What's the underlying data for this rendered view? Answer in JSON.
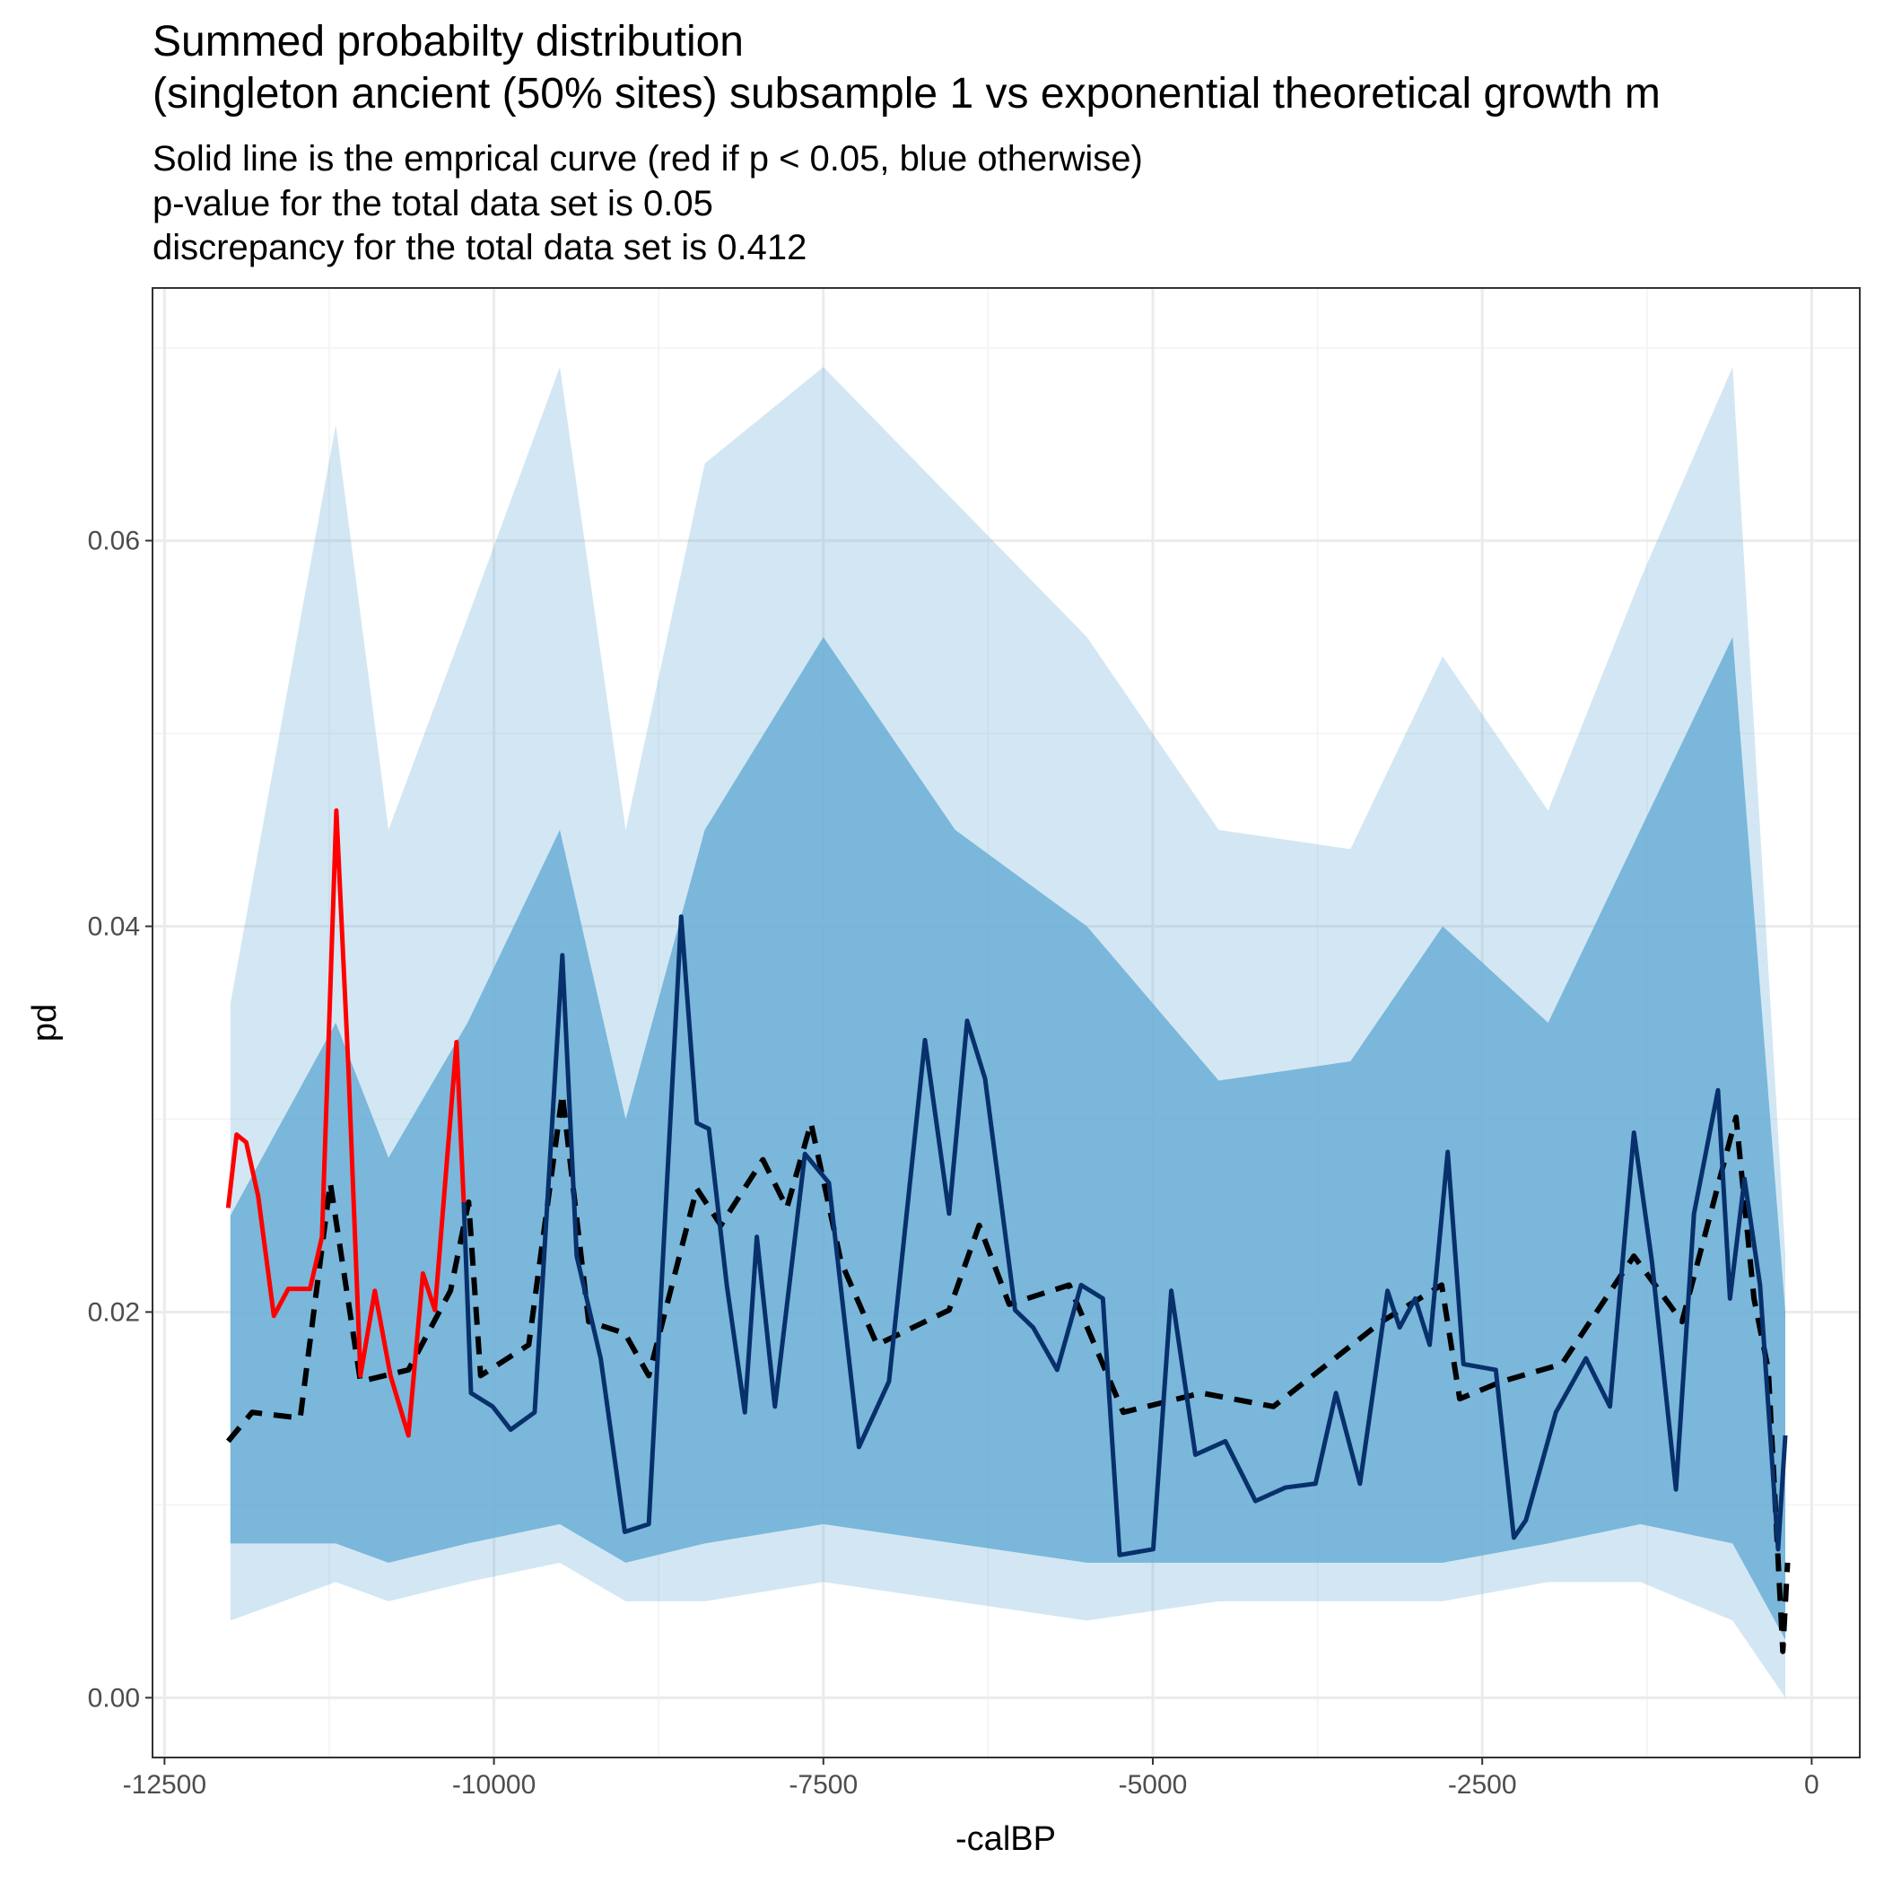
{
  "chart_data": {
    "type": "line",
    "title": [
      "Summed probabilty distribution",
      "(singleton ancient (50% sites) subsample 1 vs exponential theoretical growth m"
    ],
    "subtitle": [
      "Solid line is the emprical curve (red if p < 0.05, blue otherwise)",
      "p-value for the total data set is 0.05",
      "discrepancy for the total data set is 0.412"
    ],
    "x_label": "-calBP",
    "y_label": "pd",
    "xlim": [
      -12591,
      365
    ],
    "ylim": [
      -0.0031,
      0.0731
    ],
    "xticks": [
      -12500,
      -10000,
      -7500,
      -5000,
      -2500,
      0
    ],
    "yticks": [
      {
        "value": 0,
        "label": "0.00"
      },
      0.02,
      0.04,
      0.06
    ],
    "xminor": [
      -11250,
      -8750,
      -6250,
      -3750,
      -1250
    ],
    "yminor": [
      0.01,
      0.03,
      0.05,
      0.07
    ],
    "grid": true,
    "bands": [
      {
        "color": "#6baed6",
        "opacity": 0.3,
        "x": [
          -12000,
          -11200,
          -10800,
          -10200,
          -9500,
          -9000,
          -8400,
          -7500,
          -6500,
          -5500,
          -4500,
          -3500,
          -2800,
          -2000,
          -1300,
          -600,
          -200
        ],
        "upper": [
          0.036,
          0.066,
          0.045,
          0.056,
          0.069,
          0.045,
          0.064,
          0.069,
          0.062,
          0.055,
          0.045,
          0.044,
          0.054,
          0.046,
          0.058,
          0.069,
          0.023
        ],
        "lower": [
          0.004,
          0.006,
          0.005,
          0.006,
          0.007,
          0.005,
          0.005,
          0.006,
          0.005,
          0.004,
          0.005,
          0.005,
          0.005,
          0.006,
          0.006,
          0.004,
          0.0
        ]
      },
      {
        "color": "#6baed6",
        "opacity": 0.85,
        "x": [
          -12000,
          -11200,
          -10800,
          -10200,
          -9500,
          -9000,
          -8400,
          -7500,
          -6500,
          -5500,
          -4500,
          -3500,
          -2800,
          -2000,
          -1300,
          -600,
          -200
        ],
        "upper": [
          0.025,
          0.035,
          0.028,
          0.035,
          0.045,
          0.03,
          0.045,
          0.055,
          0.045,
          0.04,
          0.032,
          0.033,
          0.04,
          0.035,
          0.045,
          0.055,
          0.02
        ],
        "lower": [
          0.008,
          0.008,
          0.007,
          0.008,
          0.009,
          0.007,
          0.008,
          0.009,
          0.008,
          0.007,
          0.007,
          0.007,
          0.007,
          0.008,
          0.009,
          0.008,
          0.003
        ]
      }
    ],
    "series": [
      {
        "color": "#000000",
        "dashed": true,
        "width": 6,
        "x": [
          -12017,
          -11835,
          -11470,
          -11242,
          -11013,
          -10649,
          -10330,
          -10192,
          -10101,
          -9736,
          -9481,
          -9281,
          -9007,
          -8825,
          -8461,
          -8278,
          -7959,
          -7777,
          -7594,
          -7366,
          -7093,
          -6546,
          -6318,
          -6090,
          -5635,
          -5224,
          -4631,
          -4084,
          -3264,
          -2808,
          -2671,
          -2351,
          -1896,
          -1349,
          -984,
          -574,
          -438,
          -329,
          -219,
          -183
        ],
        "values": [
          0.0133,
          0.0148,
          0.0145,
          0.0267,
          0.0164,
          0.017,
          0.0211,
          0.0257,
          0.0167,
          0.0183,
          0.0313,
          0.0195,
          0.0189,
          0.0167,
          0.0264,
          0.0245,
          0.0279,
          0.0254,
          0.0298,
          0.0226,
          0.0183,
          0.0201,
          0.0245,
          0.0204,
          0.0214,
          0.0148,
          0.0158,
          0.0151,
          0.0195,
          0.0214,
          0.0155,
          0.0164,
          0.0173,
          0.0229,
          0.0195,
          0.0301,
          0.0207,
          0.017,
          0.0024,
          0.007
        ]
      },
      {
        "color": "#ff0000",
        "width": 5,
        "x": [
          -12017,
          -11953,
          -11880,
          -11789,
          -11670,
          -11561,
          -11396,
          -11305,
          -11196,
          -11104,
          -11013,
          -10904,
          -10785,
          -10649,
          -10539,
          -10448,
          -10284,
          -10229
        ],
        "values": [
          0.0254,
          0.0292,
          0.0288,
          0.026,
          0.0198,
          0.0212,
          0.0212,
          0.0239,
          0.046,
          0.0326,
          0.0167,
          0.0211,
          0.0167,
          0.0136,
          0.022,
          0.0201,
          0.034,
          0.0257
        ]
      },
      {
        "color": "#08306b",
        "width": 5,
        "x": [
          -10229,
          -10174,
          -10010,
          -9873,
          -9691,
          -9481,
          -9372,
          -9190,
          -9007,
          -8825,
          -8579,
          -8461,
          -8369,
          -8233,
          -8096,
          -8005,
          -7868,
          -7640,
          -7458,
          -7230,
          -7002,
          -6729,
          -6546,
          -6409,
          -6273,
          -6045,
          -5908,
          -5726,
          -5544,
          -5379,
          -5252,
          -4997,
          -4860,
          -4677,
          -4449,
          -4221,
          -3993,
          -3765,
          -3610,
          -3428,
          -3219,
          -3127,
          -3009,
          -2899,
          -2762,
          -2643,
          -2397,
          -2260,
          -2169,
          -1941,
          -1713,
          -1531,
          -1349,
          -1212,
          -1030,
          -893,
          -711,
          -620,
          -510,
          -392,
          -255,
          -200
        ],
        "values": [
          0.0257,
          0.0158,
          0.0151,
          0.0139,
          0.0148,
          0.0385,
          0.0229,
          0.0176,
          0.0086,
          0.009,
          0.0405,
          0.0298,
          0.0295,
          0.0214,
          0.0148,
          0.0239,
          0.0151,
          0.0282,
          0.0267,
          0.013,
          0.0164,
          0.0341,
          0.0251,
          0.0351,
          0.0321,
          0.0201,
          0.0192,
          0.017,
          0.0214,
          0.0207,
          0.0074,
          0.0077,
          0.0211,
          0.0126,
          0.0133,
          0.0102,
          0.0109,
          0.0111,
          0.0158,
          0.0111,
          0.0211,
          0.0192,
          0.0207,
          0.0183,
          0.0283,
          0.0173,
          0.017,
          0.0083,
          0.0092,
          0.0148,
          0.0176,
          0.0151,
          0.0293,
          0.0226,
          0.0108,
          0.0251,
          0.0315,
          0.0207,
          0.0269,
          0.0214,
          0.0077,
          0.0136
        ]
      }
    ]
  }
}
